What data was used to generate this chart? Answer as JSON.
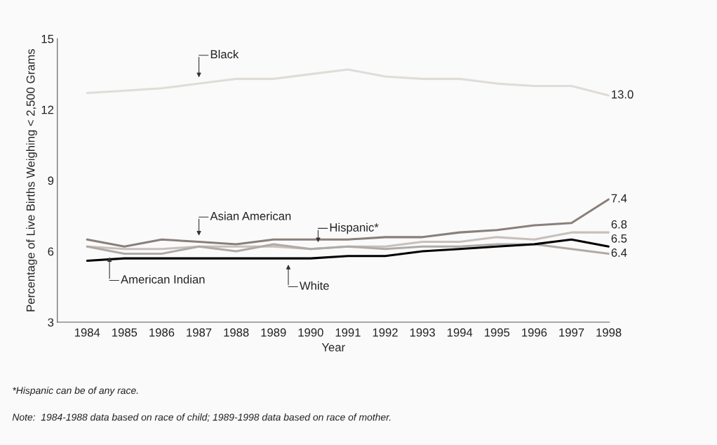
{
  "chart_data": {
    "type": "line",
    "xlabel": "Year",
    "ylabel": "Percentage of Live Births Weighing < 2,500 Grams",
    "categories": [
      "1984",
      "1985",
      "1986",
      "1987",
      "1988",
      "1989",
      "1990",
      "1991",
      "1992",
      "1993",
      "1994",
      "1995",
      "1996",
      "1997",
      "1998"
    ],
    "series": [
      {
        "name": "Black",
        "color": "#e0dcd8",
        "values": [
          12.7,
          12.8,
          12.9,
          13.1,
          13.3,
          13.3,
          13.5,
          13.7,
          13.4,
          13.3,
          13.3,
          13.1,
          13.0,
          13.0,
          12.6
        ]
      },
      {
        "name": "Asian American",
        "color": "#8a7f7a",
        "values": [
          6.5,
          6.2,
          6.5,
          6.4,
          6.3,
          6.5,
          6.5,
          6.5,
          6.6,
          6.6,
          6.8,
          6.9,
          7.1,
          7.2,
          8.2
        ]
      },
      {
        "name": "Hispanic*",
        "color": "#c8c0bb",
        "values": [
          6.2,
          6.1,
          6.1,
          6.2,
          6.2,
          6.2,
          6.1,
          6.2,
          6.2,
          6.4,
          6.4,
          6.6,
          6.5,
          6.8,
          6.8
        ]
      },
      {
        "name": "American Indian",
        "color": "#b0aaa6",
        "values": [
          6.2,
          5.9,
          5.9,
          6.2,
          6.0,
          6.3,
          6.1,
          6.2,
          6.1,
          6.2,
          6.2,
          6.3,
          6.3,
          6.1,
          5.9
        ]
      },
      {
        "name": "White",
        "color": "#000000",
        "values": [
          5.6,
          5.7,
          5.7,
          5.7,
          5.7,
          5.7,
          5.7,
          5.8,
          5.8,
          6.0,
          6.1,
          6.2,
          6.3,
          6.5,
          6.2
        ]
      }
    ],
    "ylim": [
      3,
      15
    ],
    "yticks": [
      3,
      6,
      9,
      12,
      15
    ],
    "grid": false,
    "legend": false,
    "line_style": "solid",
    "marker": "none",
    "annotations": [
      {
        "text": "13.0",
        "x": "1998",
        "y": 12.6
      },
      {
        "text": "7.4",
        "x": "1998",
        "y": 8.2
      },
      {
        "text": "6.8",
        "x": "1998",
        "y": 6.8
      },
      {
        "text": "6.5",
        "x": "1998",
        "y": 6.2
      },
      {
        "text": "6.4",
        "x": "1998",
        "y": 5.9
      },
      "*Hispanic can be of any race.",
      "Note:  1984-1988 data based on race of child; 1989-1998 data based on race of mother."
    ]
  }
}
